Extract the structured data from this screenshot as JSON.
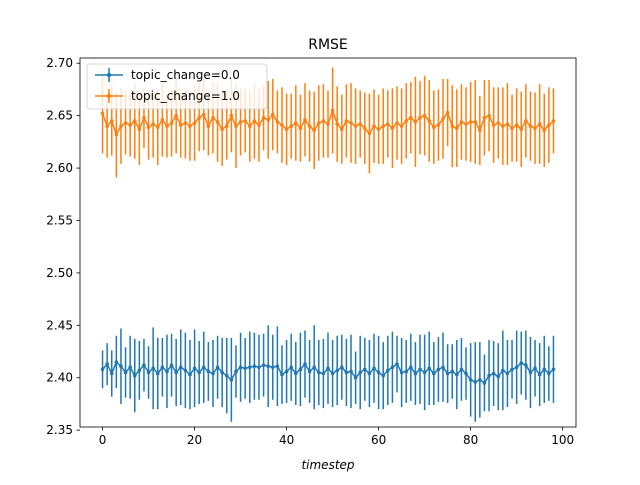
{
  "chart_data": {
    "type": "line",
    "title": "RMSE",
    "xlabel": "timestep",
    "ylabel": "",
    "xlim": [
      -4.9,
      102.9
    ],
    "ylim": [
      2.353,
      2.705
    ],
    "xticks": [
      0,
      20,
      40,
      60,
      80,
      100
    ],
    "yticks": [
      2.35,
      2.4,
      2.45,
      2.5,
      2.55,
      2.6,
      2.65,
      2.7
    ],
    "ytick_labels": [
      "2.35",
      "2.40",
      "2.45",
      "2.50",
      "2.55",
      "2.60",
      "2.65",
      "2.70"
    ],
    "grid": false,
    "legend_position": "upper-left",
    "series": [
      {
        "name": "topic_change=0.0",
        "color": "#1f77b4",
        "x": [
          0,
          1,
          2,
          3,
          4,
          5,
          6,
          7,
          8,
          9,
          10,
          11,
          12,
          13,
          14,
          15,
          16,
          17,
          18,
          19,
          20,
          21,
          22,
          23,
          24,
          25,
          26,
          27,
          28,
          29,
          30,
          31,
          32,
          33,
          34,
          35,
          36,
          37,
          38,
          39,
          40,
          41,
          42,
          43,
          44,
          45,
          46,
          47,
          48,
          49,
          50,
          51,
          52,
          53,
          54,
          55,
          56,
          57,
          58,
          59,
          60,
          61,
          62,
          63,
          64,
          65,
          66,
          67,
          68,
          69,
          70,
          71,
          72,
          73,
          74,
          75,
          76,
          77,
          78,
          79,
          80,
          81,
          82,
          83,
          84,
          85,
          86,
          87,
          88,
          89,
          90,
          91,
          92,
          93,
          94,
          95,
          96,
          97,
          98
        ],
        "y": [
          2.408,
          2.413,
          2.404,
          2.415,
          2.411,
          2.405,
          2.41,
          2.402,
          2.407,
          2.412,
          2.405,
          2.409,
          2.404,
          2.41,
          2.406,
          2.412,
          2.405,
          2.41,
          2.407,
          2.403,
          2.409,
          2.405,
          2.41,
          2.406,
          2.404,
          2.41,
          2.405,
          2.402,
          2.398,
          2.406,
          2.41,
          2.409,
          2.41,
          2.411,
          2.41,
          2.412,
          2.411,
          2.41,
          2.411,
          2.403,
          2.406,
          2.41,
          2.404,
          2.408,
          2.413,
          2.406,
          2.41,
          2.405,
          2.404,
          2.409,
          2.404,
          2.407,
          2.41,
          2.405,
          2.406,
          2.4,
          2.405,
          2.408,
          2.404,
          2.409,
          2.405,
          2.402,
          2.407,
          2.41,
          2.413,
          2.405,
          2.406,
          2.41,
          2.404,
          2.408,
          2.405,
          2.409,
          2.404,
          2.408,
          2.41,
          2.404,
          2.406,
          2.403,
          2.408,
          2.404,
          2.398,
          2.396,
          2.398,
          2.395,
          2.402,
          2.404,
          2.401,
          2.407,
          2.404,
          2.408,
          2.41,
          2.414,
          2.412,
          2.405,
          2.409,
          2.403,
          2.408,
          2.404,
          2.408
        ],
        "err": [
          0.018,
          0.02,
          0.022,
          0.025,
          0.036,
          0.024,
          0.03,
          0.035,
          0.028,
          0.025,
          0.025,
          0.039,
          0.034,
          0.028,
          0.035,
          0.03,
          0.032,
          0.036,
          0.036,
          0.033,
          0.037,
          0.03,
          0.034,
          0.028,
          0.032,
          0.03,
          0.033,
          0.036,
          0.04,
          0.025,
          0.033,
          0.029,
          0.034,
          0.032,
          0.031,
          0.03,
          0.039,
          0.031,
          0.038,
          0.028,
          0.03,
          0.032,
          0.03,
          0.035,
          0.032,
          0.03,
          0.04,
          0.031,
          0.033,
          0.034,
          0.032,
          0.033,
          0.031,
          0.032,
          0.035,
          0.025,
          0.035,
          0.03,
          0.032,
          0.033,
          0.035,
          0.032,
          0.033,
          0.034,
          0.027,
          0.033,
          0.03,
          0.032,
          0.03,
          0.033,
          0.036,
          0.035,
          0.03,
          0.031,
          0.033,
          0.028,
          0.026,
          0.033,
          0.03,
          0.025,
          0.035,
          0.038,
          0.036,
          0.027,
          0.034,
          0.031,
          0.032,
          0.038,
          0.032,
          0.028,
          0.035,
          0.03,
          0.033,
          0.034,
          0.027,
          0.03,
          0.032,
          0.026,
          0.032
        ]
      },
      {
        "name": "topic_change=1.0",
        "color": "#ff7f0e",
        "x": [
          0,
          1,
          2,
          3,
          4,
          5,
          6,
          7,
          8,
          9,
          10,
          11,
          12,
          13,
          14,
          15,
          16,
          17,
          18,
          19,
          20,
          21,
          22,
          23,
          24,
          25,
          26,
          27,
          28,
          29,
          30,
          31,
          32,
          33,
          34,
          35,
          36,
          37,
          38,
          39,
          40,
          41,
          42,
          43,
          44,
          45,
          46,
          47,
          48,
          49,
          50,
          51,
          52,
          53,
          54,
          55,
          56,
          57,
          58,
          59,
          60,
          61,
          62,
          63,
          64,
          65,
          66,
          67,
          68,
          69,
          70,
          71,
          72,
          73,
          74,
          75,
          76,
          77,
          78,
          79,
          80,
          81,
          82,
          83,
          84,
          85,
          86,
          87,
          88,
          89,
          90,
          91,
          92,
          93,
          94,
          95,
          96,
          97,
          98
        ],
        "y": [
          2.652,
          2.64,
          2.645,
          2.632,
          2.64,
          2.643,
          2.641,
          2.645,
          2.637,
          2.648,
          2.639,
          2.642,
          2.639,
          2.646,
          2.64,
          2.643,
          2.65,
          2.641,
          2.643,
          2.64,
          2.643,
          2.648,
          2.651,
          2.64,
          2.648,
          2.644,
          2.637,
          2.64,
          2.65,
          2.64,
          2.644,
          2.645,
          2.64,
          2.645,
          2.641,
          2.648,
          2.646,
          2.651,
          2.644,
          2.641,
          2.637,
          2.64,
          2.643,
          2.638,
          2.646,
          2.64,
          2.636,
          2.643,
          2.645,
          2.642,
          2.655,
          2.642,
          2.637,
          2.645,
          2.643,
          2.64,
          2.642,
          2.638,
          2.633,
          2.64,
          2.637,
          2.64,
          2.642,
          2.638,
          2.643,
          2.64,
          2.645,
          2.648,
          2.644,
          2.648,
          2.65,
          2.645,
          2.639,
          2.641,
          2.647,
          2.653,
          2.64,
          2.638,
          2.644,
          2.642,
          2.644,
          2.644,
          2.636,
          2.648,
          2.65,
          2.641,
          2.643,
          2.64,
          2.642,
          2.638,
          2.641,
          2.637,
          2.645,
          2.64,
          2.638,
          2.642,
          2.636,
          2.641,
          2.645
        ],
        "err": [
          0.038,
          0.03,
          0.033,
          0.041,
          0.036,
          0.03,
          0.03,
          0.036,
          0.034,
          0.029,
          0.031,
          0.032,
          0.036,
          0.035,
          0.03,
          0.032,
          0.036,
          0.031,
          0.034,
          0.033,
          0.036,
          0.032,
          0.034,
          0.028,
          0.034,
          0.038,
          0.035,
          0.032,
          0.035,
          0.04,
          0.032,
          0.03,
          0.034,
          0.036,
          0.035,
          0.031,
          0.037,
          0.034,
          0.03,
          0.036,
          0.034,
          0.031,
          0.036,
          0.032,
          0.035,
          0.034,
          0.037,
          0.036,
          0.035,
          0.032,
          0.041,
          0.036,
          0.033,
          0.035,
          0.038,
          0.036,
          0.032,
          0.034,
          0.038,
          0.035,
          0.033,
          0.036,
          0.032,
          0.038,
          0.035,
          0.036,
          0.036,
          0.034,
          0.043,
          0.035,
          0.038,
          0.039,
          0.035,
          0.034,
          0.038,
          0.032,
          0.039,
          0.037,
          0.036,
          0.035,
          0.038,
          0.04,
          0.033,
          0.036,
          0.034,
          0.036,
          0.034,
          0.037,
          0.039,
          0.032,
          0.035,
          0.036,
          0.035,
          0.033,
          0.034,
          0.038,
          0.035,
          0.036,
          0.031
        ]
      }
    ]
  }
}
